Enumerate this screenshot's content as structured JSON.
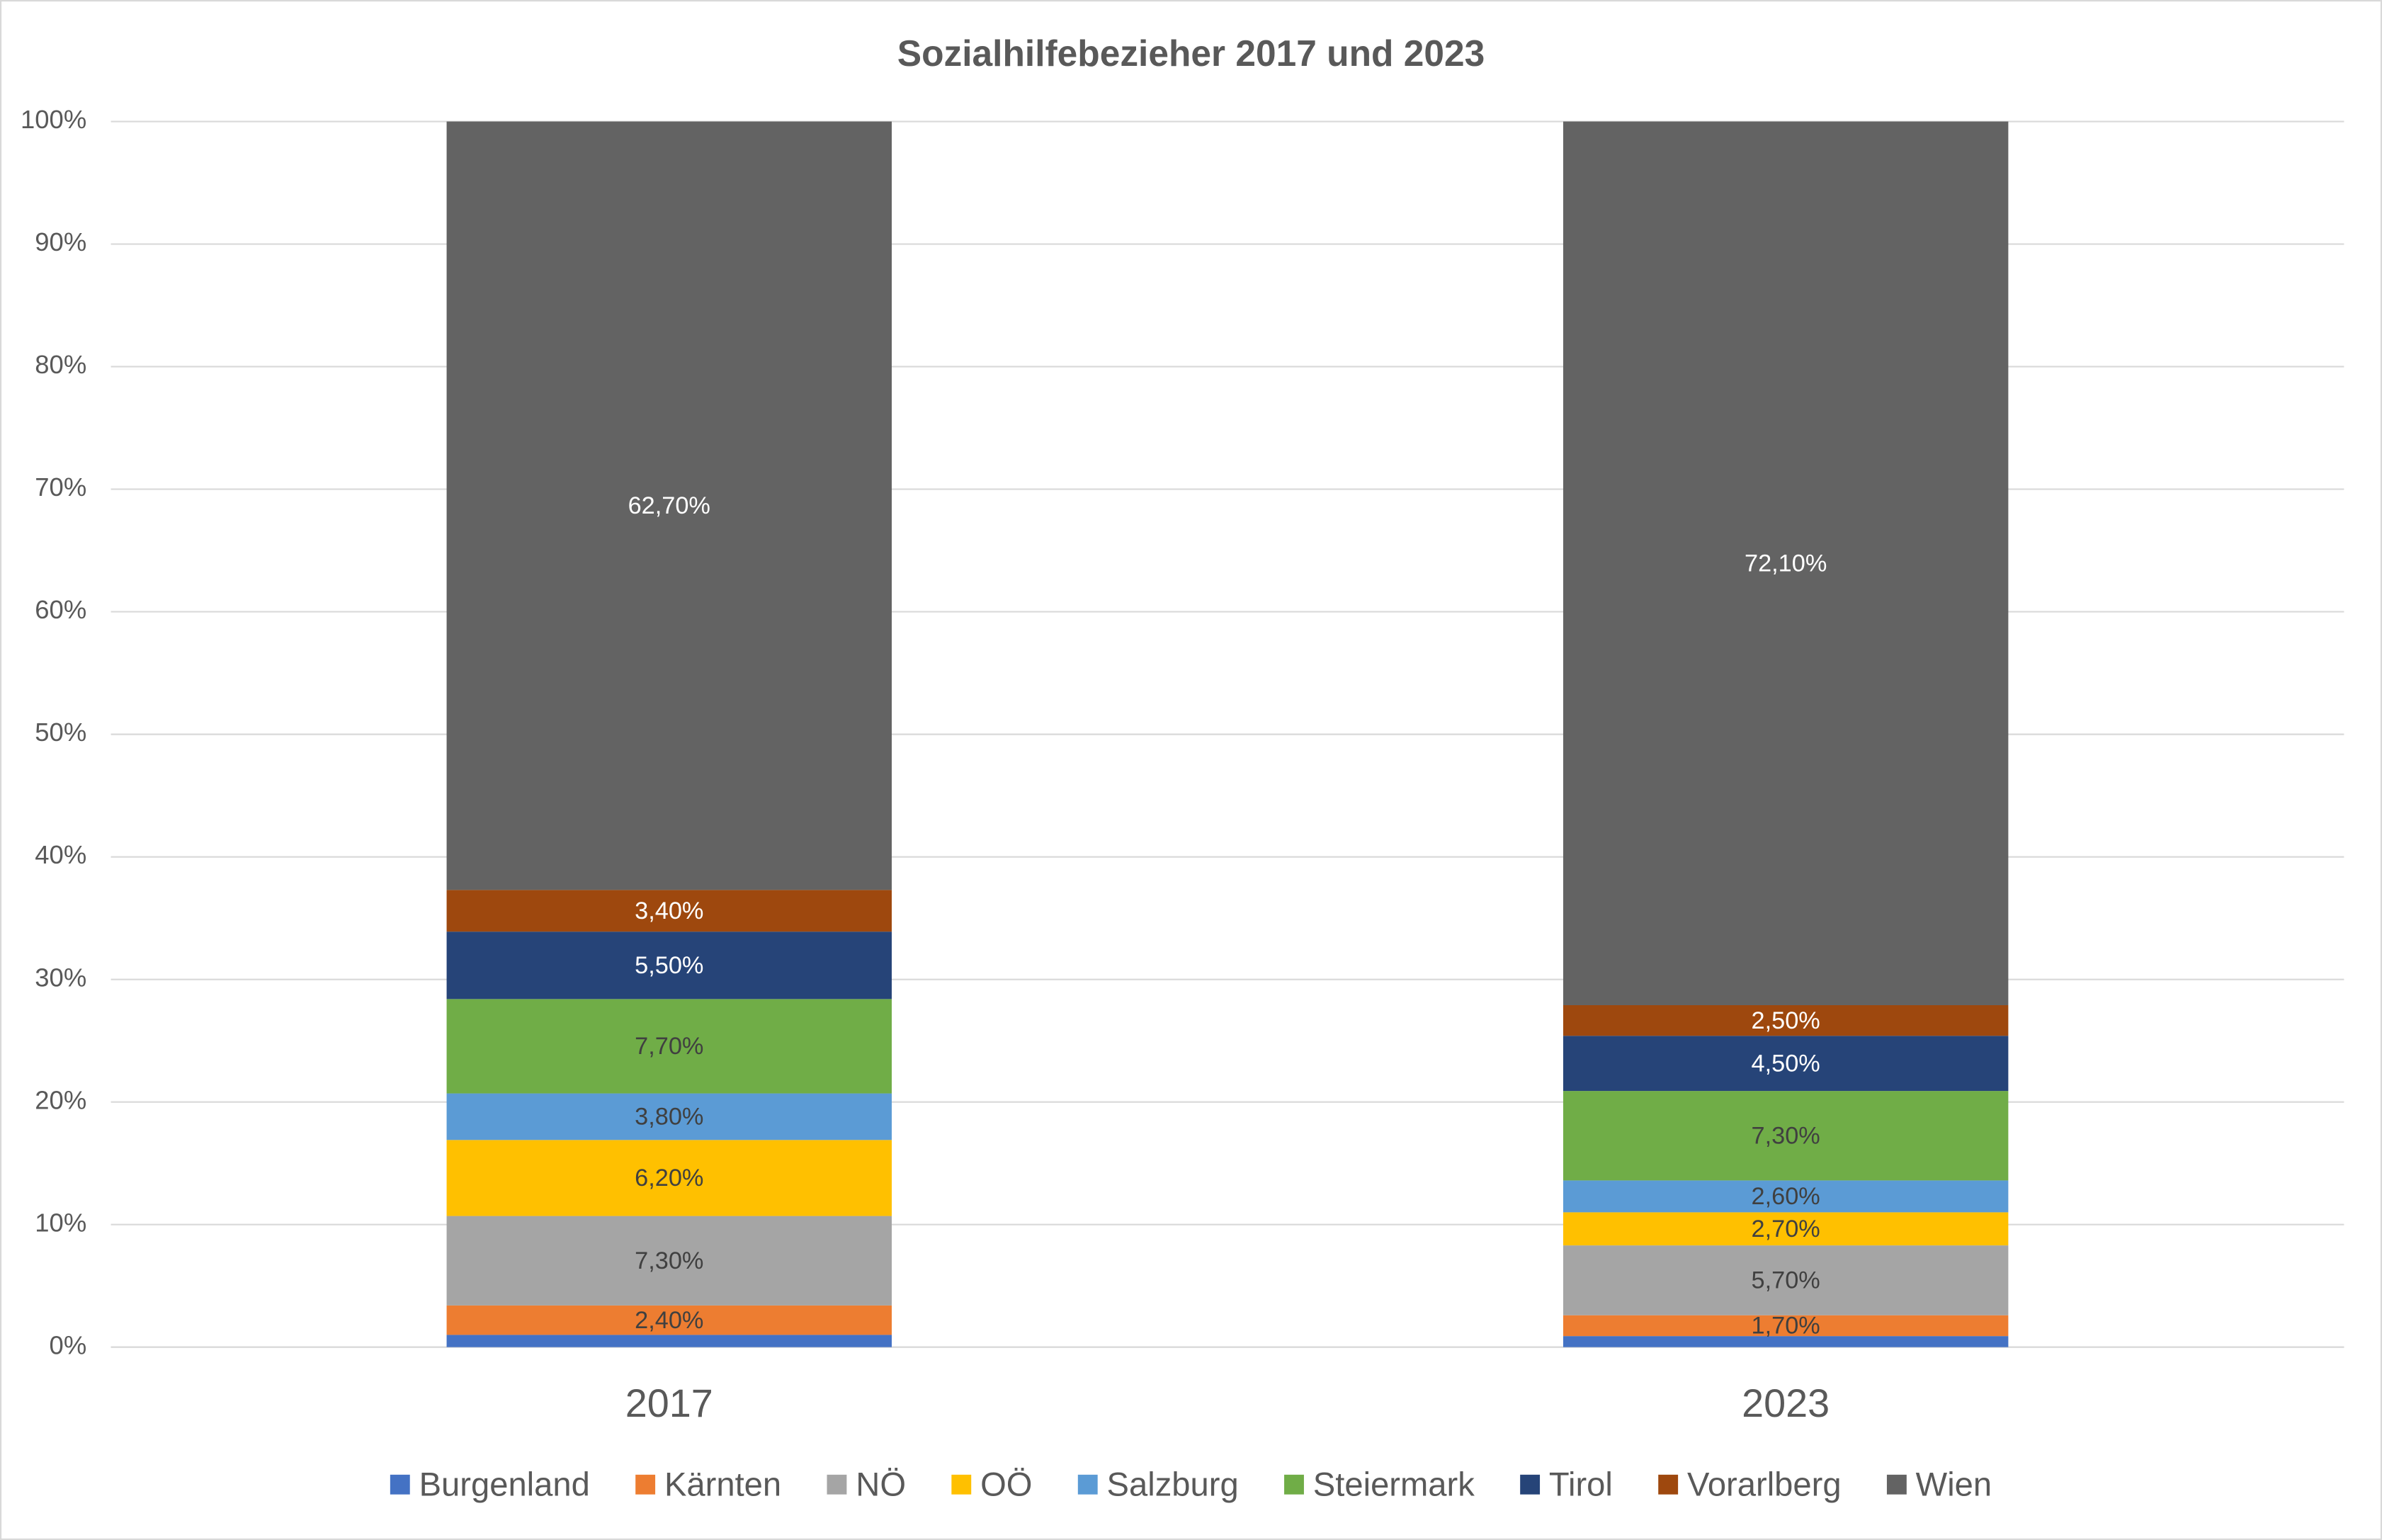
{
  "chart_data": {
    "type": "stacked_bar_100",
    "title": "Sozialhilfebezieher 2017 und 2023",
    "categories": [
      "2017",
      "2023"
    ],
    "ylim": [
      0,
      100
    ],
    "yticks": [
      {
        "value": 0,
        "label": "0%"
      },
      {
        "value": 10,
        "label": "10%"
      },
      {
        "value": 20,
        "label": "20%"
      },
      {
        "value": 30,
        "label": "30%"
      },
      {
        "value": 40,
        "label": "40%"
      },
      {
        "value": 50,
        "label": "50%"
      },
      {
        "value": 60,
        "label": "60%"
      },
      {
        "value": 70,
        "label": "70%"
      },
      {
        "value": 80,
        "label": "80%"
      },
      {
        "value": 90,
        "label": "90%"
      },
      {
        "value": 100,
        "label": "100%"
      }
    ],
    "grid": true,
    "legend": "bottom",
    "series": [
      {
        "name": "Burgenland",
        "color": "#4472c4",
        "values": [
          1.0,
          0.9
        ],
        "value_labels": [
          null,
          null
        ]
      },
      {
        "name": "Kärnten",
        "color": "#ed7d31",
        "values": [
          2.4,
          1.7
        ],
        "value_labels": [
          "2,40%",
          "1,70%"
        ]
      },
      {
        "name": "NÖ",
        "color": "#a5a5a5",
        "values": [
          7.3,
          5.7
        ],
        "value_labels": [
          "7,30%",
          "5,70%"
        ]
      },
      {
        "name": "OÖ",
        "color": "#ffc000",
        "values": [
          6.2,
          2.7
        ],
        "value_labels": [
          "6,20%",
          "2,70%"
        ]
      },
      {
        "name": "Salzburg",
        "color": "#5b9bd5",
        "values": [
          3.8,
          2.6
        ],
        "value_labels": [
          "3,80%",
          "2,60%"
        ]
      },
      {
        "name": "Steiermark",
        "color": "#70ad47",
        "values": [
          7.7,
          7.3
        ],
        "value_labels": [
          "7,70%",
          "7,30%"
        ]
      },
      {
        "name": "Tirol",
        "color": "#264478",
        "values": [
          5.5,
          4.5
        ],
        "value_labels": [
          "5,50%",
          "4,50%"
        ]
      },
      {
        "name": "Vorarlberg",
        "color": "#9e480e",
        "values": [
          3.4,
          2.5
        ],
        "value_labels": [
          "3,40%",
          "2,50%"
        ]
      },
      {
        "name": "Wien",
        "color": "#636363",
        "values": [
          62.7,
          72.1
        ],
        "value_labels": [
          "62,70%",
          "72,10%"
        ]
      }
    ]
  }
}
